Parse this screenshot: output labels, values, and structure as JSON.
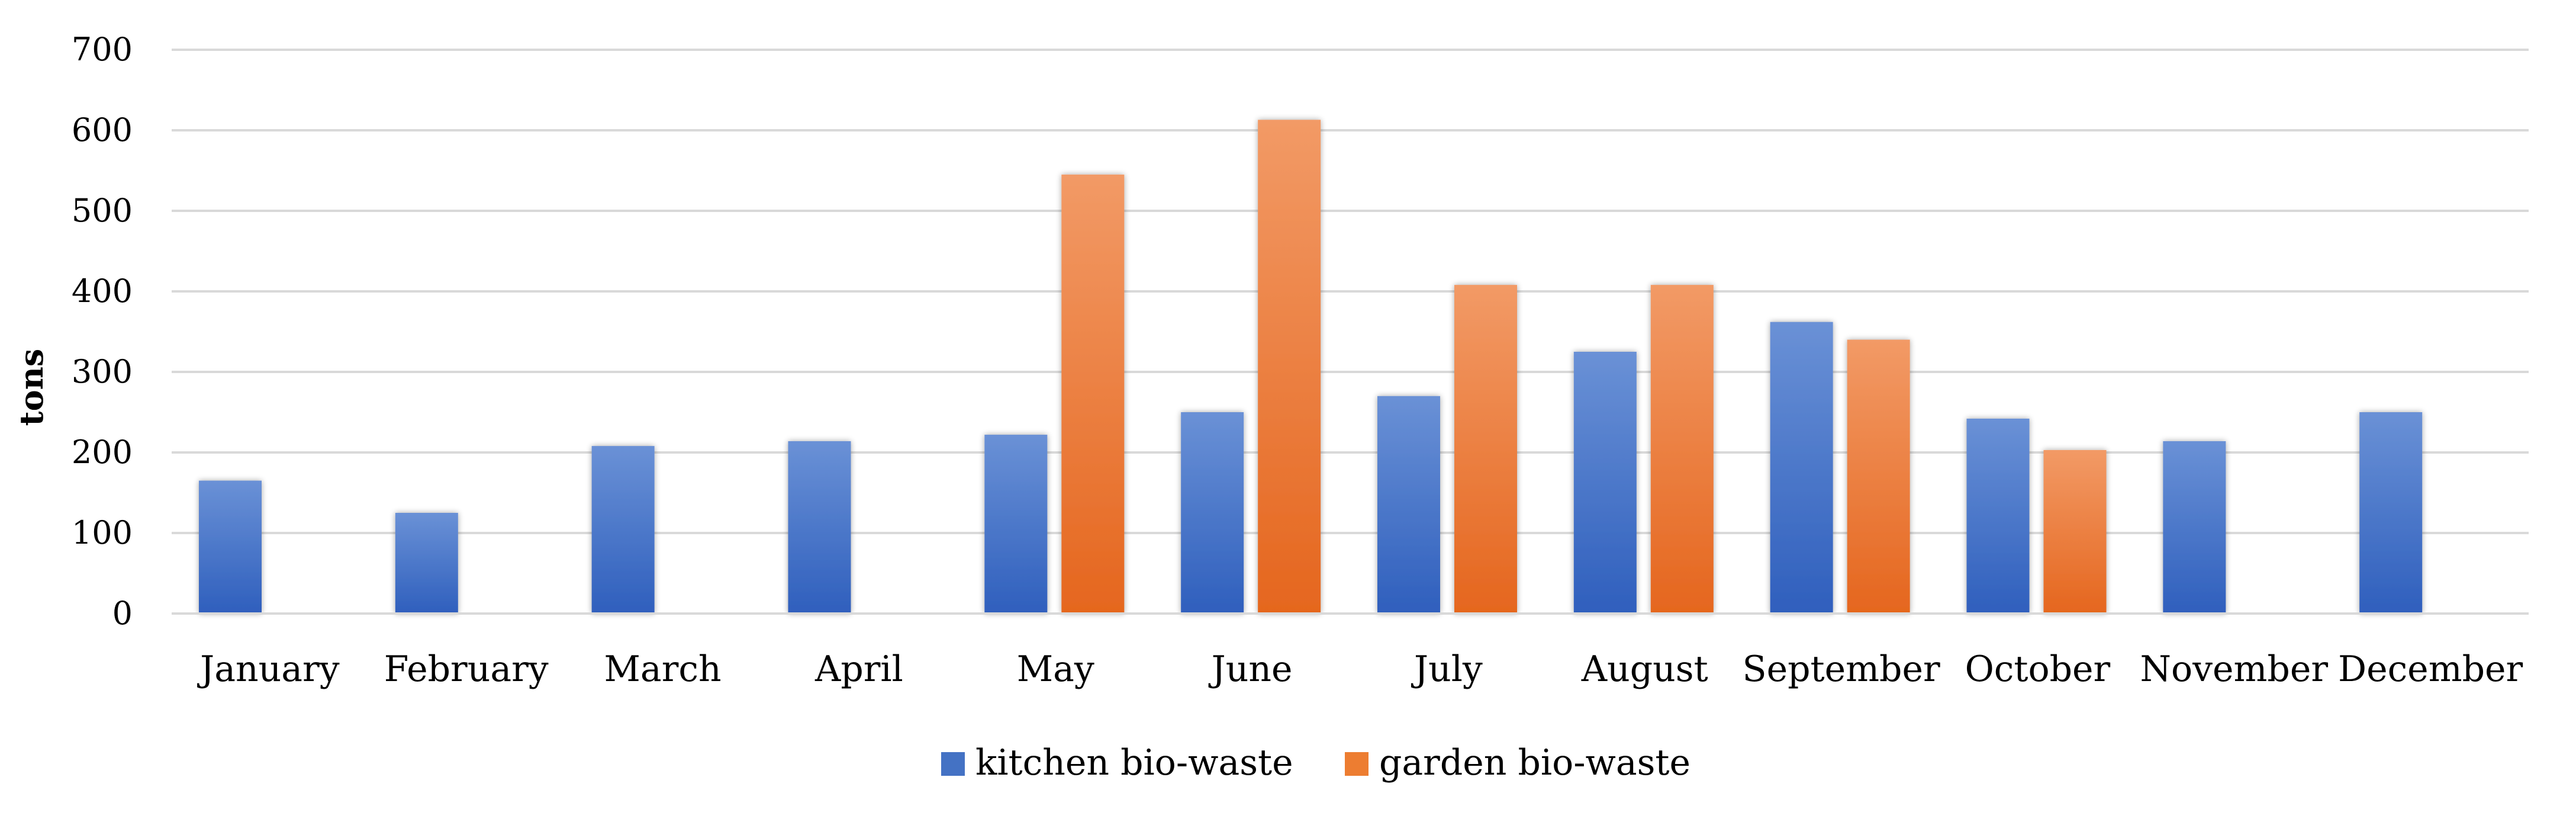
{
  "chart_data": {
    "type": "bar",
    "title": "",
    "xlabel": "",
    "ylabel": "tons",
    "ylim": [
      0,
      700
    ],
    "yticks": [
      0,
      100,
      200,
      300,
      400,
      500,
      600,
      700
    ],
    "grid": true,
    "legend_position": "bottom-center",
    "categories": [
      "January",
      "February",
      "March",
      "April",
      "May",
      "June",
      "July",
      "August",
      "September",
      "October",
      "November",
      "December"
    ],
    "series": [
      {
        "name": "kitchen bio-waste",
        "color_top": "#6a91d6",
        "color_bottom": "#2f5fbd",
        "legend_color": "#4472c4",
        "values": [
          165,
          125,
          208,
          214,
          222,
          250,
          270,
          325,
          362,
          242,
          214,
          250
        ]
      },
      {
        "name": "garden bio-waste",
        "color_top": "#f29a66",
        "color_bottom": "#e5661e",
        "legend_color": "#ed7d31",
        "values": [
          0,
          0,
          0,
          0,
          545,
          613,
          408,
          408,
          340,
          203,
          0,
          0
        ]
      }
    ]
  }
}
